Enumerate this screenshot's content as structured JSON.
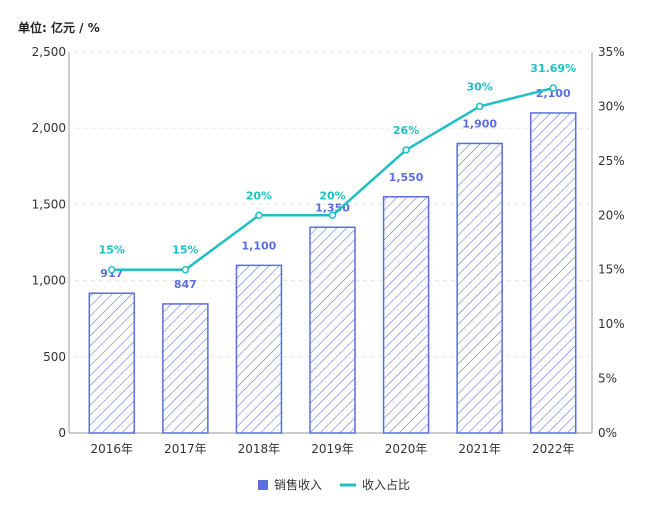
{
  "chart_data": {
    "type": "bar",
    "unit_label": "单位: 亿元 / %",
    "categories": [
      "2016年",
      "2017年",
      "2018年",
      "2019年",
      "2020年",
      "2021年",
      "2022年"
    ],
    "series": [
      {
        "name": "销售收入",
        "type": "bar",
        "axis": "left",
        "values": [
          917,
          847,
          1100,
          1350,
          1550,
          1900,
          2100
        ],
        "labels": [
          "917",
          "847",
          "1,100",
          "1,350",
          "1,550",
          "1,900",
          "2,100"
        ],
        "color": "#5b6ee0"
      },
      {
        "name": "收入占比",
        "type": "line",
        "axis": "right",
        "values": [
          15,
          15,
          20,
          20,
          26,
          30,
          31.69
        ],
        "labels": [
          "15%",
          "15%",
          "20%",
          "20%",
          "26%",
          "30%",
          "31.69%"
        ],
        "color": "#1fbfc4"
      }
    ],
    "y_left": {
      "min": 0,
      "max": 2500,
      "ticks": [
        0,
        500,
        1000,
        1500,
        2000,
        2500
      ],
      "tick_labels": [
        "0",
        "500",
        "1,000",
        "1,500",
        "2,000",
        "2,500"
      ]
    },
    "y_right": {
      "min": 0,
      "max": 35,
      "ticks": [
        0,
        5,
        10,
        15,
        20,
        25,
        30,
        35
      ],
      "tick_labels": [
        "0%",
        "5%",
        "10%",
        "15%",
        "20%",
        "25%",
        "30%",
        "35%"
      ]
    },
    "grid": true,
    "legend_position": "bottom"
  }
}
